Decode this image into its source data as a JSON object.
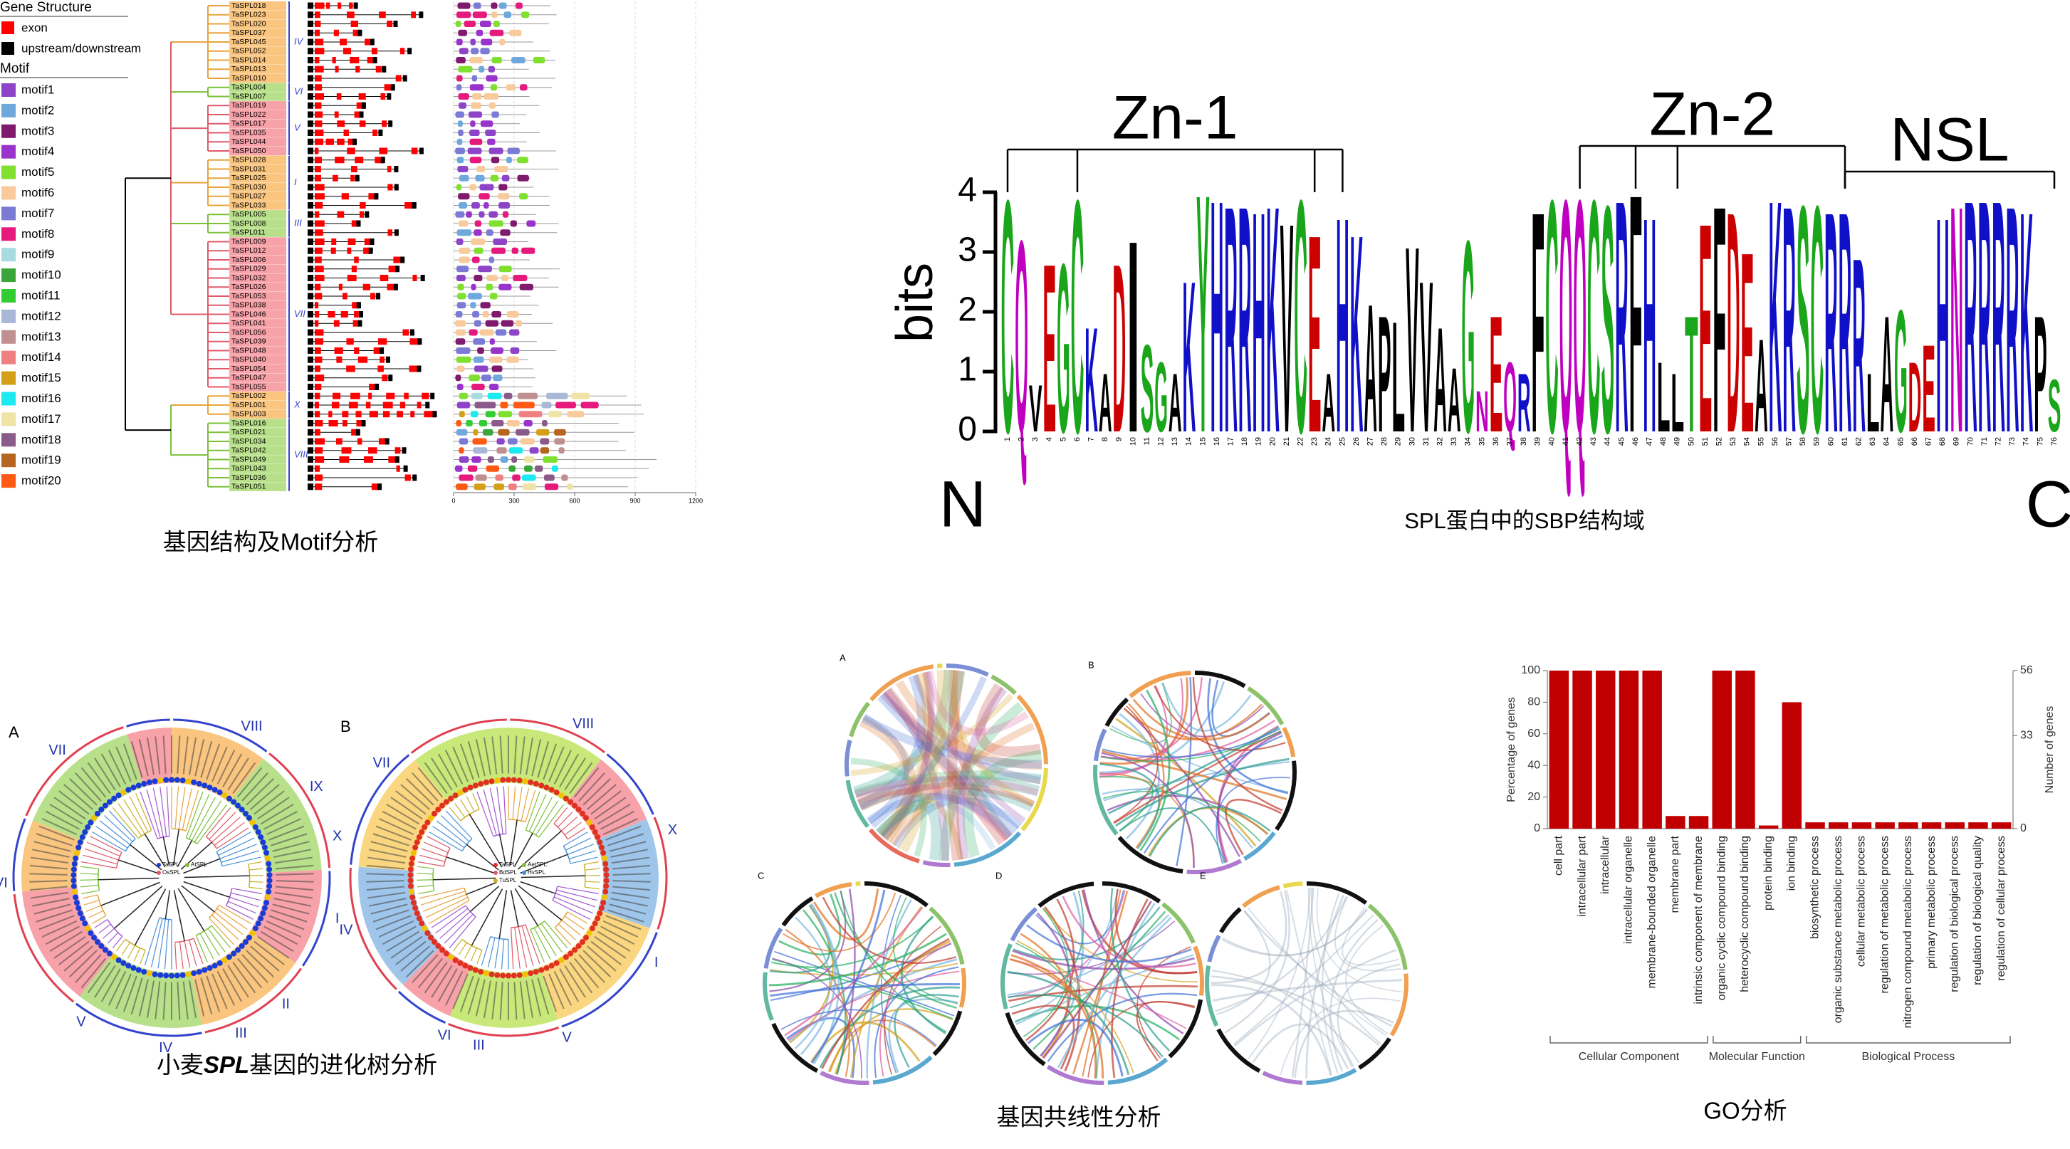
{
  "gene_structure": {
    "legend_title": "Gene Structure",
    "legend_items": [
      {
        "name": "exon",
        "color": "#ff0000"
      },
      {
        "name": "upstream/downstream",
        "color": "#000000"
      }
    ],
    "motif_title": "Motif",
    "motifs": [
      {
        "name": "motif1",
        "color": "#8e44c8"
      },
      {
        "name": "motif2",
        "color": "#6fa8dc"
      },
      {
        "name": "motif3",
        "color": "#7f1a6e"
      },
      {
        "name": "motif4",
        "color": "#9933cc"
      },
      {
        "name": "motif5",
        "color": "#80e030"
      },
      {
        "name": "motif6",
        "color": "#f9cb9c"
      },
      {
        "name": "motif7",
        "color": "#7b7bd6"
      },
      {
        "name": "motif8",
        "color": "#e6197d"
      },
      {
        "name": "motif9",
        "color": "#a8dbe0"
      },
      {
        "name": "motif10",
        "color": "#3aa63a"
      },
      {
        "name": "motif11",
        "color": "#33cc33"
      },
      {
        "name": "motif12",
        "color": "#a9b8d6"
      },
      {
        "name": "motif13",
        "color": "#c09090"
      },
      {
        "name": "motif14",
        "color": "#f08080"
      },
      {
        "name": "motif15",
        "color": "#d4a017"
      },
      {
        "name": "motif16",
        "color": "#1de9f0"
      },
      {
        "name": "motif17",
        "color": "#efe3a6"
      },
      {
        "name": "motif18",
        "color": "#8a5a8a"
      },
      {
        "name": "motif19",
        "color": "#b5651d"
      },
      {
        "name": "motif20",
        "color": "#ff5a14"
      }
    ],
    "clades": [
      {
        "label": "IV",
        "fill": "#f9c57f",
        "line": "#e8a33a",
        "genes": [
          "TaSPL018",
          "TaSPL023",
          "TaSPL020",
          "TaSPL037",
          "TaSPL045",
          "TaSPL052",
          "TaSPL014",
          "TaSPL013",
          "TaSPL010"
        ]
      },
      {
        "label": "VI",
        "fill": "#b8e08a",
        "line": "#7cbf3a",
        "genes": [
          "TaSPL004",
          "TaSPL007"
        ]
      },
      {
        "label": "V",
        "fill": "#f7a1a8",
        "line": "#e05a6a",
        "genes": [
          "TaSPL019",
          "TaSPL022",
          "TaSPL017",
          "TaSPL035",
          "TaSPL044",
          "TaSPL050"
        ]
      },
      {
        "label": "I",
        "fill": "#f9c57f",
        "line": "#e8a33a",
        "genes": [
          "TaSPL028",
          "TaSPL031",
          "TaSPL025",
          "TaSPL030",
          "TaSPL027",
          "TaSPL033"
        ]
      },
      {
        "label": "III",
        "fill": "#b8e08a",
        "line": "#7cbf3a",
        "genes": [
          "TaSPL005",
          "TaSPL008",
          "TaSPL011"
        ]
      },
      {
        "label": "VII",
        "fill": "#f7a1a8",
        "line": "#e05a6a",
        "genes": [
          "TaSPL009",
          "TaSPL012",
          "TaSPL006",
          "TaSPL029",
          "TaSPL032",
          "TaSPL026",
          "TaSPL053",
          "TaSPL038",
          "TaSPL046",
          "TaSPL041",
          "TaSPL056",
          "TaSPL039",
          "TaSPL048",
          "TaSPL040",
          "TaSPL054",
          "TaSPL047",
          "TaSPL055"
        ]
      },
      {
        "label": "X",
        "fill": "#f9c57f",
        "line": "#e8a33a",
        "genes": [
          "TaSPL002",
          "TaSPL001",
          "TaSPL003"
        ]
      },
      {
        "label": "VIII",
        "fill": "#b8e08a",
        "line": "#7cbf3a",
        "genes": [
          "TaSPL016",
          "TaSPL021",
          "TaSPL034",
          "TaSPL042",
          "TaSPL049",
          "TaSPL043",
          "TaSPL036",
          "TaSPL051"
        ]
      }
    ],
    "motif_axis": {
      "xlim": [
        0,
        1200
      ],
      "xticks": [
        0,
        300,
        600,
        900,
        1200
      ]
    },
    "caption": "基因结构及Motif分析"
  },
  "logo": {
    "labels": [
      "Zn-1",
      "Zn-2",
      "NSL"
    ],
    "y_label": "bits",
    "yticks": [
      0,
      1,
      2,
      3,
      4
    ],
    "n_terminus": "N",
    "c_terminus": "C",
    "caption": "SPL蛋白中的SBP结构域",
    "residues": [
      "C",
      "Q",
      "V",
      "E",
      "G",
      "C",
      "K",
      "A",
      "D",
      "I",
      "S",
      "G",
      "A",
      "K",
      "Y",
      "H",
      "R",
      "R",
      "H",
      "K",
      "V",
      "C",
      "E",
      "A",
      "H",
      "K",
      "A",
      "P",
      "L",
      "V",
      "V",
      "A",
      "A",
      "G",
      "N",
      "E",
      "Q",
      "R",
      "F",
      "C",
      "Q",
      "Q",
      "C",
      "S",
      "R",
      "F",
      "H",
      "L",
      "L",
      "T",
      "E",
      "F",
      "D",
      "E",
      "A",
      "K",
      "R",
      "S",
      "C",
      "R",
      "R",
      "R",
      "L",
      "A",
      "G",
      "D",
      "E",
      "H",
      "N",
      "R",
      "R",
      "R",
      "R",
      "K",
      "P",
      "S"
    ],
    "bits": [
      4.0,
      3.3,
      0.8,
      2.9,
      2.9,
      4.0,
      1.8,
      1.0,
      2.9,
      3.3,
      1.5,
      1.2,
      1.0,
      2.6,
      4.1,
      4.0,
      3.9,
      3.9,
      3.8,
      3.9,
      3.6,
      4.0,
      3.4,
      1.0,
      3.7,
      3.4,
      2.2,
      2.0,
      1.9,
      3.2,
      2.6,
      1.8,
      1.1,
      3.3,
      0.7,
      2.0,
      1.2,
      1.0,
      3.8,
      4.0,
      4.0,
      4.0,
      4.0,
      3.9,
      4.0,
      4.1,
      3.7,
      1.2,
      1.0,
      2.0,
      3.6,
      3.9,
      3.8,
      3.1,
      1.6,
      4.0,
      3.9,
      3.9,
      3.9,
      3.8,
      3.8,
      3.0,
      1.0,
      2.0,
      2.1,
      1.2,
      1.5,
      3.7,
      3.9,
      4.0,
      4.0,
      4.0,
      3.9,
      3.8,
      2.0,
      0.9
    ],
    "positions": [
      1,
      2,
      3,
      4,
      5,
      6,
      7,
      8,
      9,
      10,
      11,
      12,
      13,
      14,
      15,
      16,
      17,
      18,
      19,
      20,
      21,
      22,
      23,
      24,
      25,
      26,
      27,
      28,
      29,
      30,
      31,
      32,
      33,
      34,
      35,
      36,
      37,
      38,
      39,
      40,
      41,
      42,
      43,
      44,
      45,
      46,
      47,
      48,
      49,
      50,
      51,
      52,
      53,
      54,
      55,
      56,
      57,
      58,
      59,
      60,
      61,
      62,
      63,
      64,
      65,
      66,
      67,
      68,
      69,
      70,
      71,
      72,
      73,
      74,
      75,
      76
    ],
    "residue_colors": {
      "C": "#1aa61a",
      "G": "#1aa61a",
      "S": "#1aa61a",
      "T": "#1aa61a",
      "Y": "#1aa61a",
      "Q": "#c000c0",
      "N": "#c000c0",
      "K": "#1010c8",
      "R": "#1010c8",
      "H": "#1010c8",
      "D": "#cc0000",
      "E": "#cc0000",
      "A": "#000000",
      "V": "#000000",
      "L": "#000000",
      "I": "#000000",
      "P": "#000000",
      "F": "#000000",
      "M": "#000000",
      "W": "#000000"
    }
  },
  "phylogeny": {
    "panels": [
      {
        "letter": "A",
        "clades": [
          "VIII",
          "IX",
          "X",
          "I",
          "II",
          "III",
          "IV",
          "V",
          "VI",
          "VII"
        ],
        "species": [
          "TaSPL",
          "AtSPL",
          "OsSPL"
        ]
      },
      {
        "letter": "B",
        "clades": [
          "VIII",
          "X",
          "I",
          "V",
          "III",
          "VI",
          "IV",
          "VII"
        ],
        "species": [
          "TaSPL",
          "AetSPL",
          "BdSPL",
          "HvSPL",
          "TuSPL"
        ]
      }
    ],
    "caption_parts": [
      "小麦",
      "SPL",
      "基因的进化树分析"
    ]
  },
  "synteny": {
    "panels": [
      "A",
      "B",
      "C",
      "D",
      "E"
    ],
    "caption": "基因共线性分析"
  },
  "chart_data": {
    "type": "bar",
    "groups": [
      {
        "name": "Cellular Component",
        "categories": [
          "cell part",
          "intracellular part",
          "intracellular",
          "intracellular organelle",
          "membrane-bounded organelle",
          "membrane part",
          "intrinsic component of membrane"
        ]
      },
      {
        "name": "Molecular Function",
        "categories": [
          "organic cyclic compound binding",
          "heterocyclic compound binding",
          "protein binding",
          "ion binding"
        ]
      },
      {
        "name": "Biological Process",
        "categories": [
          "biosynthetic process",
          "organic substance metabolic process",
          "cellular metabolic process",
          "regulation of metabolic process",
          "nitrogen compound metabolic process",
          "primary metabolic process",
          "regulation of biological process",
          "regulation of biological quality",
          "regulation of cellular process"
        ]
      }
    ],
    "values": [
      100,
      100,
      100,
      100,
      100,
      8,
      8,
      100,
      100,
      2,
      80,
      4,
      4,
      4,
      4,
      4,
      4,
      4,
      4,
      4
    ],
    "color": "#c00000",
    "y_label": "Percentage of genes",
    "y2_label": "Number of genes",
    "ylim": [
      0,
      100
    ],
    "yticks": [
      0,
      20,
      40,
      60,
      80,
      100
    ],
    "y2lim": [
      0,
      56
    ],
    "y2ticks": [
      0,
      33,
      56
    ],
    "caption": "GO分析"
  }
}
